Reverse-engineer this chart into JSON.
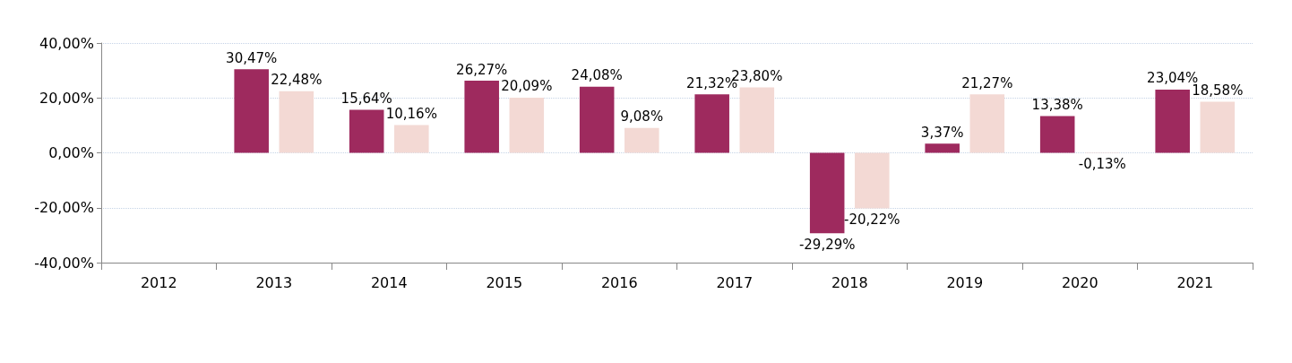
{
  "chart_data": {
    "type": "bar",
    "categories": [
      "2012",
      "2013",
      "2014",
      "2015",
      "2016",
      "2017",
      "2018",
      "2019",
      "2020",
      "2021"
    ],
    "series": [
      {
        "color": "#9e2a5e",
        "values": [
          null,
          30.47,
          15.64,
          26.27,
          24.08,
          21.32,
          -29.29,
          3.37,
          13.38,
          23.04
        ],
        "value_labels": [
          null,
          "30,47%",
          "15,64%",
          "26,27%",
          "24,08%",
          "21,32%",
          "-29,29%",
          "3,37%",
          "13,38%",
          "23,04%"
        ]
      },
      {
        "color": "#f3d9d4",
        "values": [
          null,
          22.48,
          10.16,
          20.09,
          9.08,
          23.8,
          -20.22,
          21.27,
          -0.13,
          18.58
        ],
        "value_labels": [
          null,
          "22,48%",
          "10,16%",
          "20,09%",
          "9,08%",
          "23,80%",
          "-20,22%",
          "21,27%",
          "-0,13%",
          "18,58%"
        ]
      }
    ],
    "ylim": [
      -40,
      40
    ],
    "yticks": [
      {
        "value": -40,
        "label": "-40,00%"
      },
      {
        "value": -20,
        "label": "-20,00%"
      },
      {
        "value": 0,
        "label": "0,00%"
      },
      {
        "value": 20,
        "label": "20,00%"
      },
      {
        "value": 40,
        "label": "40,00%"
      }
    ],
    "grid": "y"
  }
}
